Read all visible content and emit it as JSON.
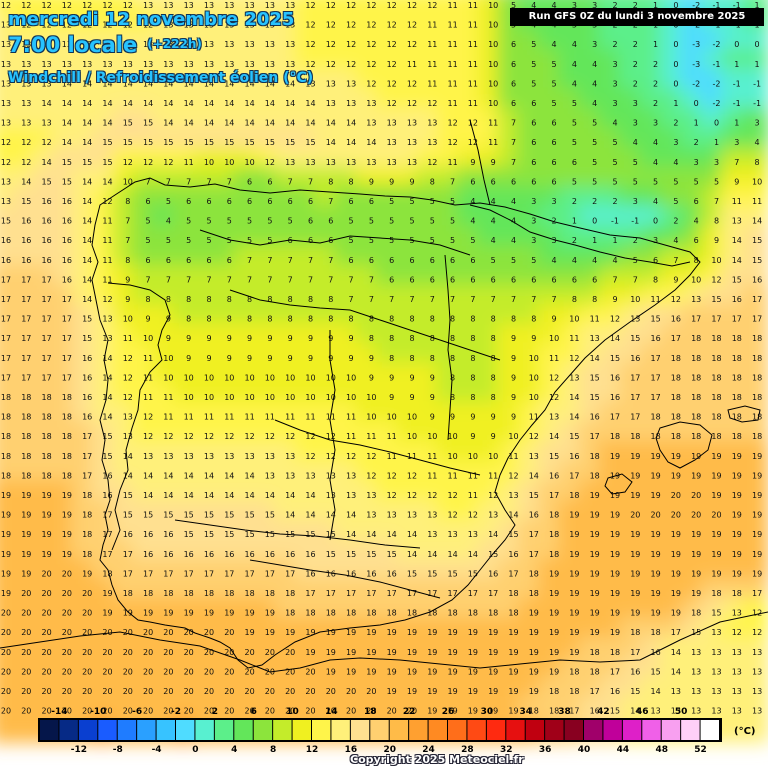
{
  "header": {
    "date": "mercredi 12 novembre 2025",
    "time": "7:00 locale",
    "lead": "(+222h)",
    "parameter": "Windchill / Refroidissement éolien (°C)"
  },
  "run_info": "Run GFS 0Z du lundi 3 novembre 2025",
  "copyright": "Copyright 2025 Meteociel.fr",
  "colorbar": {
    "unit": "(°C)",
    "labels_top": [
      "-14",
      "-10",
      "-6",
      "-2",
      "2",
      "6",
      "10",
      "14",
      "18",
      "22",
      "26",
      "30",
      "34",
      "38",
      "42",
      "46",
      "50"
    ],
    "labels_bottom": [
      "-12",
      "-8",
      "-4",
      "0",
      "4",
      "8",
      "12",
      "16",
      "20",
      "24",
      "28",
      "32",
      "36",
      "40",
      "44",
      "48",
      "52"
    ],
    "colors": [
      "#05164a",
      "#062a86",
      "#0a3fd0",
      "#1a5cff",
      "#1f7cff",
      "#2aa0ff",
      "#37c3ff",
      "#4fdcff",
      "#58f0d0",
      "#5cef8a",
      "#63e65a",
      "#8ce43c",
      "#c4ec2a",
      "#f0f020",
      "#fff44a",
      "#fff07a",
      "#ffe090",
      "#ffd070",
      "#ffbb48",
      "#ffa030",
      "#ff8a22",
      "#ff6e1a",
      "#ff4a14",
      "#ff2a10",
      "#e61010",
      "#c00010",
      "#a00018",
      "#880020",
      "#a0006a",
      "#c0009a",
      "#de20c8",
      "#f060e8",
      "#f8a0f0",
      "#ffd0f8",
      "#ffffff"
    ]
  },
  "map": {
    "features": [
      "Iberian Peninsula",
      "Balearic Islands",
      "North Africa coast"
    ],
    "field_description": "wind chill temperature field",
    "grid_values": [
      "12 12 12 12 12 12 12 13 13 13 13 13 13 13 13 12 12 12 12 12 12 12 11 11 10 5 4 4 3 3 2 2 1 0 -2 -1 -1 1",
      "13 12 12 12 12 12 12 12 13 13 13 13 13 13 13 12 12 12 12 12 12 11 11 11 10 5 4 4 3 3 2 2 1 0 -2 -1 -1 1",
      "13 13 13 13 13 13 13 13 13 13 13 13 13 13 13 12 12 12 12 12 12 11 11 11 10 6 5 4 4 3 2 2 1 0 -3 -2 0 0",
      "13 13 13 13 13 13 13 13 13 13 13 13 13 13 13 12 12 12 12 12 11 11 11 11 10 6 5 5 4 4 3 2 2 0 -3 -1 1 1",
      "13 13 13 14 14 14 14 14 14 14 14 14 14 14 14 13 13 13 12 12 12 11 11 11 10 6 5 5 4 4 3 2 2 0 -2 -2 -1 -1",
      "13 13 14 14 14 14 14 14 14 14 14 14 14 14 14 14 13 13 13 12 12 12 11 11 10 6 6 5 5 4 3 3 2 1 0 -2 -1 -1",
      "13 13 13 14 14 14 15 15 14 14 14 14 14 14 14 14 14 14 13 13 13 13 12 12 11 7 6 6 5 5 4 3 3 2 1 0 1 3",
      "12 12 12 14 14 15 15 15 15 15 15 15 15 15 15 15 14 14 14 13 13 13 12 12 11 7 6 6 5 5 5 4 4 3 2 1 3 4",
      "12 12 14 15 15 15 12 12 12 11 10 10 10 12 13 13 13 13 13 13 13 12 11 9 9 7 6 6 6 5 5 5 4 4 3 3 7 8",
      "13 14 15 15 14 14 10 7 7 7 7 7 6 6 7 7 8 8 9 9 9 8 7 6 6 6 6 6 5 5 5 5 5 5 5 5 9 10",
      "13 15 16 16 14 12 8 6 5 6 6 6 6 6 6 6 7 6 6 5 5 5 5 4 4 4 3 3 2 2 2 3 4 5 6 7 11 11",
      "15 16 16 16 14 11 7 5 4 5 5 5 5 5 5 6 6 5 5 5 5 5 5 4 4 4 3 2 1 0 -1 -1 0 2 4 8 13 14",
      "16 16 16 16 14 11 7 5 5 5 5 5 5 5 6 6 6 5 5 5 5 5 5 5 4 4 3 3 2 1 1 2 3 4 6 9 14 15",
      "16 16 16 16 14 11 8 6 6 6 6 6 7 7 7 7 7 6 6 6 6 6 6 6 5 5 5 4 4 4 4 5 6 7 8 10 14 15",
      "17 17 17 16 14 11 9 7 7 7 7 7 7 7 7 7 7 7 7 6 6 6 6 6 6 6 6 6 6 6 7 7 8 9 10 12 15 16",
      "17 17 17 17 14 12 9 8 8 8 8 8 8 8 8 8 8 7 7 7 7 7 7 7 7 7 7 7 8 8 9 10 11 12 13 15 16 17",
      "17 17 17 17 15 13 10 9 9 8 8 8 8 8 8 8 8 8 8 8 8 8 8 8 8 8 8 9 10 11 12 13 15 16 17 17 17 17",
      "17 17 17 17 15 13 11 10 9 9 9 9 9 9 9 9 9 9 8 8 8 8 8 8 8 9 9 10 11 13 14 15 16 17 18 18 18 18",
      "17 17 17 17 16 14 12 11 10 9 9 9 9 9 9 9 9 9 9 8 8 8 8 8 8 9 10 11 12 14 15 16 17 18 18 18 18 18",
      "17 17 17 17 16 14 12 11 10 10 10 10 10 10 10 10 10 10 9 9 9 9 8 8 8 9 10 12 13 15 16 17 17 18 18 18 18 18",
      "18 18 18 18 16 14 12 11 11 10 10 10 10 10 10 10 10 10 10 9 9 9 8 8 8 9 10 12 14 15 16 17 17 18 18 18 18 18",
      "18 18 18 18 16 14 13 12 11 11 11 11 11 11 11 11 11 11 10 10 10 9 9 9 9 9 11 13 14 16 17 17 18 18 18 18 18 18",
      "18 18 18 18 17 15 13 12 12 12 12 12 12 12 12 12 12 11 11 11 10 10 10 9 9 10 12 14 15 17 18 18 18 18 18 18 18 18",
      "18 18 18 18 17 15 14 13 13 13 13 13 13 13 13 12 12 12 12 11 11 11 10 10 10 11 13 15 16 18 19 19 19 19 19 19 19 19",
      "18 18 18 18 17 16 14 14 14 14 14 14 14 13 13 13 13 13 12 12 12 11 11 11 11 12 14 16 17 18 19 19 19 19 19 19 19 19",
      "19 19 19 19 18 16 15 14 14 14 14 14 14 14 14 14 13 13 13 12 12 12 12 11 12 13 15 17 18 19 19 19 19 20 20 19 19 19",
      "19 19 19 19 18 17 15 15 15 15 15 15 15 15 14 14 14 14 13 13 13 13 12 12 13 14 16 18 19 19 19 20 20 20 20 20 19 19",
      "19 19 19 19 18 17 16 16 16 15 15 15 15 15 15 15 15 14 14 14 14 13 13 13 14 15 17 18 19 19 19 19 19 19 19 19 19 19",
      "19 19 19 19 18 17 17 16 16 16 16 16 16 16 16 16 15 15 15 15 14 14 14 14 15 16 17 18 19 19 19 19 19 19 19 19 19 19",
      "19 19 20 20 19 18 17 17 17 17 17 17 17 17 17 16 16 16 16 16 15 15 15 15 16 17 18 19 19 19 19 19 19 19 19 19 19 19",
      "19 20 20 20 20 19 18 18 18 18 18 18 18 18 18 17 17 17 17 17 17 17 17 17 17 18 18 19 19 19 19 19 19 19 19 18 18 17",
      "20 20 20 20 20 19 19 19 19 19 19 19 19 19 18 18 18 18 18 18 18 18 18 18 18 18 19 19 19 19 19 19 19 19 18 15 13 12",
      "20 20 20 20 20 20 20 20 20 20 20 20 19 19 19 19 19 19 19 19 19 19 19 19 19 19 19 19 19 19 19 18 18 17 15 13 12 12",
      "20 20 20 20 20 20 20 20 20 20 20 20 20 20 20 19 19 19 19 19 19 19 19 19 19 19 19 19 19 18 18 17 16 14 13 13 13 13",
      "20 20 20 20 20 20 20 20 20 20 20 20 20 20 20 20 19 19 19 19 19 19 19 19 19 19 19 19 18 18 17 16 15 14 13 13 13 13",
      "20 20 20 20 20 20 20 20 20 20 20 20 20 20 20 20 20 20 20 19 19 19 19 19 19 19 19 18 18 17 16 15 14 13 13 13 13 13",
      "20 20 20 20 20 20 20 20 20 20 20 20 20 20 20 20 20 20 20 20 20 19 19 19 19 19 18 18 17 16 15 14 13 13 13 13 13 13",
      "20 20 20 20 20 21 20 20 20 21 20 20 20 20 20 20 20 20 20 20 20 20 19 19 19 19 19 18 17 16 15 14 13 13 13 13 13 13"
    ]
  }
}
